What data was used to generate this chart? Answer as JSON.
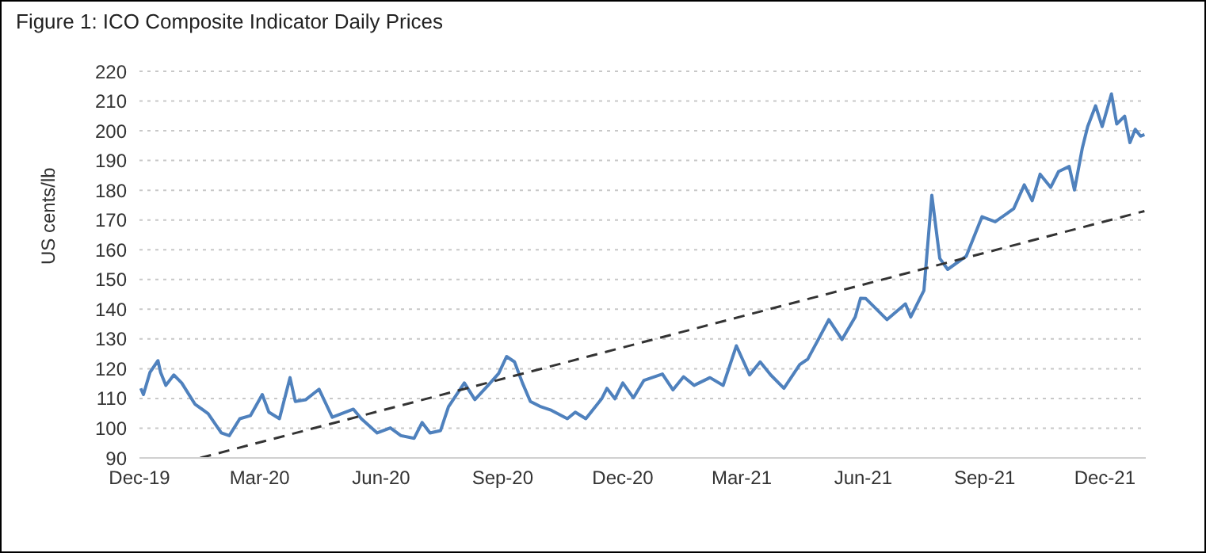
{
  "chart_data": {
    "type": "line",
    "title": "Figure 1: ICO Composite Indicator Daily Prices",
    "ylabel": "US cents/lb",
    "xlim": [
      "2019-12-01",
      "2022-01-01"
    ],
    "xticks": [
      {
        "value": "2019-12-01",
        "label": "Dec-19"
      },
      {
        "value": "2020-03-01",
        "label": "Mar-20"
      },
      {
        "value": "2020-06-01",
        "label": "Jun-20"
      },
      {
        "value": "2020-09-01",
        "label": "Sep-20"
      },
      {
        "value": "2020-12-01",
        "label": "Dec-20"
      },
      {
        "value": "2021-03-01",
        "label": "Mar-21"
      },
      {
        "value": "2021-06-01",
        "label": "Jun-21"
      },
      {
        "value": "2021-09-01",
        "label": "Sep-21"
      },
      {
        "value": "2021-12-01",
        "label": "Dec-21"
      }
    ],
    "ylim": [
      90,
      220
    ],
    "yticks": [
      90,
      100,
      110,
      120,
      130,
      140,
      150,
      160,
      170,
      180,
      190,
      200,
      210,
      220
    ],
    "grid": "y",
    "marker": "none",
    "series": [
      {
        "color": "#4f81bd",
        "line_style": "solid",
        "x": [
          "2019-12-02",
          "2019-12-04",
          "2019-12-09",
          "2019-12-15",
          "2019-12-17",
          "2019-12-21",
          "2019-12-27",
          "2020-01-02",
          "2020-01-12",
          "2020-01-22",
          "2020-02-01",
          "2020-02-07",
          "2020-02-15",
          "2020-02-23",
          "2020-03-03",
          "2020-03-08",
          "2020-03-16",
          "2020-03-24",
          "2020-03-28",
          "2020-04-05",
          "2020-04-15",
          "2020-04-25",
          "2020-05-11",
          "2020-05-17",
          "2020-05-29",
          "2020-06-08",
          "2020-06-16",
          "2020-06-26",
          "2020-07-02",
          "2020-07-08",
          "2020-07-16",
          "2020-07-22",
          "2020-08-03",
          "2020-08-11",
          "2020-08-21",
          "2020-08-29",
          "2020-09-04",
          "2020-09-10",
          "2020-09-16",
          "2020-09-22",
          "2020-09-30",
          "2020-10-08",
          "2020-10-20",
          "2020-10-26",
          "2020-11-03",
          "2020-11-15",
          "2020-11-19",
          "2020-11-25",
          "2020-12-01",
          "2020-12-09",
          "2020-12-17",
          "2020-12-31",
          "2021-01-08",
          "2021-01-16",
          "2021-01-24",
          "2021-02-05",
          "2021-02-15",
          "2021-02-25",
          "2021-03-07",
          "2021-03-15",
          "2021-03-23",
          "2021-04-02",
          "2021-04-14",
          "2021-04-20",
          "2021-04-28",
          "2021-05-06",
          "2021-05-16",
          "2021-05-26",
          "2021-05-30",
          "2021-06-03",
          "2021-06-19",
          "2021-07-03",
          "2021-07-07",
          "2021-07-17",
          "2021-07-23",
          "2021-07-29",
          "2021-08-04",
          "2021-08-18",
          "2021-08-30",
          "2021-09-09",
          "2021-09-23",
          "2021-10-01",
          "2021-10-07",
          "2021-10-13",
          "2021-10-21",
          "2021-10-27",
          "2021-11-04",
          "2021-11-08",
          "2021-11-14",
          "2021-11-18",
          "2021-11-24",
          "2021-11-29",
          "2021-12-06",
          "2021-12-10",
          "2021-12-16",
          "2021-12-20",
          "2021-12-24",
          "2021-12-28",
          "2021-12-31"
        ],
        "values": [
          113.4,
          111.3,
          118.8,
          122.7,
          118.8,
          114.4,
          117.9,
          115.2,
          108.1,
          104.9,
          98.4,
          97.5,
          103.2,
          104.2,
          111.3,
          105.4,
          103.2,
          117.0,
          109.0,
          109.6,
          113.1,
          103.7,
          106.4,
          103.2,
          98.4,
          100.1,
          97.5,
          96.6,
          101.9,
          98.4,
          99.2,
          107.2,
          115.2,
          109.6,
          114.4,
          118.4,
          124.1,
          122.3,
          115.2,
          109.0,
          107.2,
          106.0,
          103.2,
          105.4,
          103.2,
          109.9,
          113.4,
          109.9,
          115.2,
          110.2,
          116.1,
          118.2,
          112.9,
          117.3,
          114.4,
          117.0,
          114.4,
          127.7,
          117.9,
          122.3,
          117.9,
          113.4,
          121.4,
          123.2,
          129.8,
          136.5,
          129.8,
          137.4,
          143.7,
          143.6,
          136.5,
          141.8,
          137.4,
          146.3,
          178.3,
          157.1,
          153.4,
          157.8,
          171.1,
          169.4,
          173.8,
          181.8,
          176.5,
          185.4,
          181.0,
          186.3,
          188.0,
          180.1,
          194.3,
          201.4,
          208.4,
          201.4,
          212.4,
          202.3,
          204.9,
          196.0,
          200.5,
          198.2,
          198.7
        ]
      },
      {
        "color": "#333333",
        "line_style": "dashed",
        "x": [
          "2020-01-16",
          "2021-12-31"
        ],
        "values": [
          90,
          173
        ]
      }
    ]
  }
}
